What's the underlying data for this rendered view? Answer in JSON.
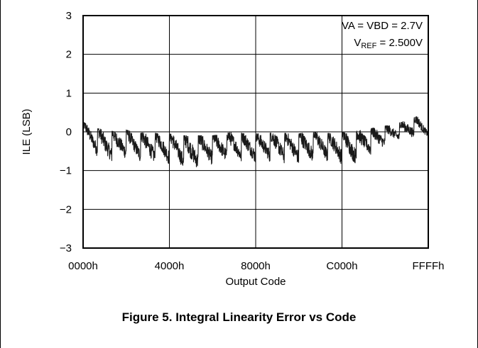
{
  "figure": {
    "caption": "Figure 5. Integral Linearity Error vs Code"
  },
  "chart_data": {
    "type": "line",
    "title": "",
    "xlabel": "Output Code",
    "ylabel": "ILE (LSB)",
    "xlim": [
      0,
      65535
    ],
    "ylim": [
      -3,
      3
    ],
    "x_ticks": [
      0,
      16384,
      32768,
      49152,
      65535
    ],
    "x_tick_labels": [
      "0000h",
      "4000h",
      "8000h",
      "C000h",
      "FFFFh"
    ],
    "y_ticks": [
      3,
      2,
      1,
      0,
      -1,
      -2,
      -3
    ],
    "y_tick_labels": [
      "3",
      "2",
      "1",
      "0",
      "−1",
      "−2",
      "−3"
    ],
    "grid": true,
    "legend": "none",
    "annotations": [
      {
        "text": "VA = VBD = 2.7V"
      },
      {
        "main": "V",
        "sub": "REF",
        "rest": " = 2.500V"
      }
    ],
    "series": [
      {
        "color": "#1a1a1a",
        "envelope": {
          "x": [
            0,
            2048,
            4096,
            6144,
            8192,
            10240,
            12288,
            14336,
            16384,
            18432,
            20480,
            22528,
            24576,
            26624,
            28672,
            30720,
            32768,
            34816,
            36864,
            38912,
            40960,
            43008,
            45056,
            47104,
            49152,
            51200,
            53248,
            55296,
            57344,
            59392,
            61440,
            63488,
            65535
          ],
          "max": [
            0.25,
            0.1,
            0.05,
            0.0,
            0.05,
            -0.05,
            0.0,
            -0.05,
            -0.05,
            -0.1,
            -0.1,
            -0.1,
            -0.1,
            -0.05,
            0.0,
            -0.05,
            -0.05,
            -0.05,
            0.0,
            -0.05,
            -0.05,
            0.0,
            0.0,
            -0.05,
            0.0,
            0.0,
            0.05,
            0.1,
            0.15,
            0.2,
            0.3,
            0.4,
            0.2
          ],
          "min": [
            -0.4,
            -0.6,
            -0.85,
            -0.8,
            -0.75,
            -0.8,
            -0.9,
            -0.85,
            -0.9,
            -1.0,
            -1.1,
            -0.95,
            -0.9,
            -0.85,
            -0.8,
            -0.85,
            -0.85,
            -0.8,
            -0.85,
            -0.85,
            -0.9,
            -0.85,
            -0.8,
            -0.85,
            -0.9,
            -0.95,
            -0.7,
            -0.6,
            -0.45,
            -0.3,
            -0.25,
            -0.15,
            -0.15
          ]
        }
      }
    ]
  }
}
